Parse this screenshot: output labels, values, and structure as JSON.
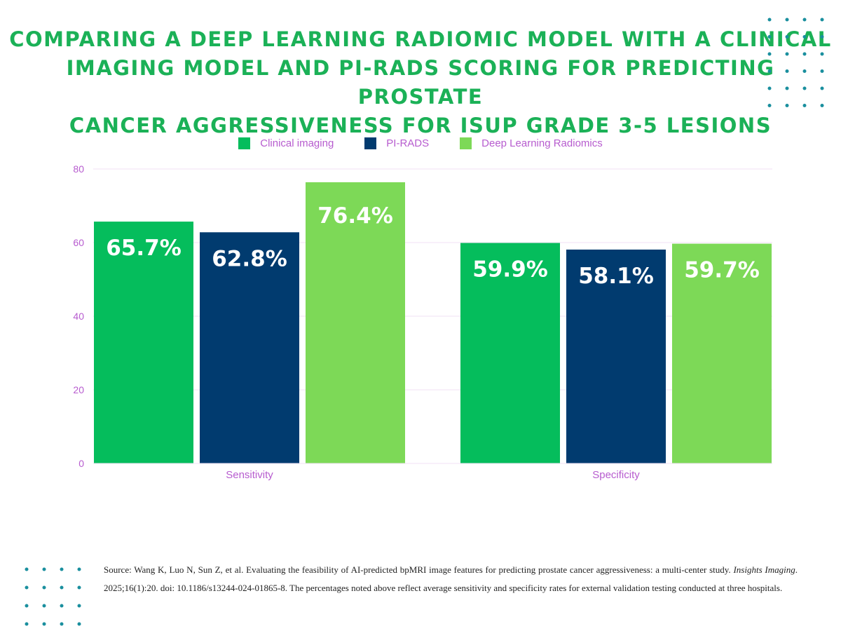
{
  "title_lines": [
    "COMPARING A DEEP LEARNING RADIOMIC MODEL WITH A CLINICAL",
    "IMAGING MODEL AND PI-RADS SCORING FOR PREDICTING PROSTATE",
    "CANCER AGGRESSIVENESS FOR ISUP GRADE 3-5 LESIONS"
  ],
  "colors": {
    "clinical": "#05bd5c",
    "pirads": "#013b6f",
    "dlr": "#7dd957",
    "axis_text": "#b75ccf",
    "grid": "#f1e2f6",
    "dots": "#1a8f9e"
  },
  "chart_data": {
    "type": "bar",
    "categories": [
      "Sensitivity",
      "Specificity"
    ],
    "series": [
      {
        "name": "Clinical imaging",
        "values": [
          65.7,
          59.9
        ],
        "labels": [
          "65.7%",
          "59.9%"
        ]
      },
      {
        "name": "PI-RADS",
        "values": [
          62.8,
          58.1
        ],
        "labels": [
          "62.8%",
          "58.1%"
        ]
      },
      {
        "name": "Deep Learning Radiomics",
        "values": [
          76.4,
          59.7
        ],
        "labels": [
          "76.4%",
          "59.7%"
        ]
      }
    ],
    "ylim": [
      0,
      80
    ],
    "yticks": [
      "0",
      "20",
      "40",
      "60",
      "80"
    ],
    "legend": "top-center",
    "grid": true
  },
  "source": {
    "prefix": "Source: Wang K, Luo N, Sun Z, et al. Evaluating the feasibility of AI-predicted bpMRI image features for predicting prostate cancer aggressiveness: a multi-center study.",
    "journal": "Insights Imaging",
    "suffix": ". 2025;16(1):20. doi: 10.1186/s13244-024-01865-8. The percentages noted above reflect average sensitivity and specificity rates for external validation testing conducted at three hospitals."
  }
}
